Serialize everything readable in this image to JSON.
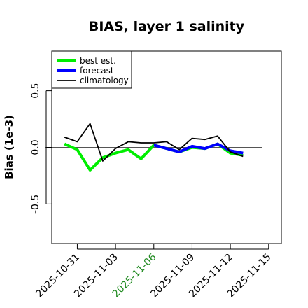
{
  "chart_data": {
    "type": "line",
    "title": "BIAS, layer 1 salinity",
    "xlabel": "",
    "ylabel": "Bias (1e-3)",
    "xlim": [
      "2025-10-29",
      "2025-11-16"
    ],
    "ylim": [
      -0.85,
      0.85
    ],
    "x_ticks": [
      {
        "date": "2025-10-31",
        "label": "2025-10-31",
        "color": "#000000"
      },
      {
        "date": "2025-11-03",
        "label": "2025-11-03",
        "color": "#000000"
      },
      {
        "date": "2025-11-06",
        "label": "2025-11-06",
        "color": "#228B22"
      },
      {
        "date": "2025-11-09",
        "label": "2025-11-09",
        "color": "#000000"
      },
      {
        "date": "2025-11-12",
        "label": "2025-11-12",
        "color": "#000000"
      },
      {
        "date": "2025-11-15",
        "label": "2025-11-15",
        "color": "#000000"
      }
    ],
    "y_ticks": [
      {
        "value": -0.5,
        "label": "-0.5"
      },
      {
        "value": 0.0,
        "label": "0.0"
      },
      {
        "value": 0.5,
        "label": "0.5"
      }
    ],
    "reference_line": 0.0,
    "grid": false,
    "legend_position": "top-left",
    "series": [
      {
        "name": "best est.",
        "color": "#00ee00",
        "x": [
          "2025-10-30",
          "2025-10-31",
          "2025-11-01",
          "2025-11-02",
          "2025-11-03",
          "2025-11-04",
          "2025-11-05",
          "2025-11-06",
          "2025-11-07",
          "2025-11-08",
          "2025-11-09",
          "2025-11-10",
          "2025-11-11",
          "2025-11-12",
          "2025-11-13"
        ],
        "y": [
          0.03,
          -0.02,
          -0.2,
          -0.09,
          -0.05,
          -0.02,
          -0.1,
          0.02,
          -0.01,
          -0.04,
          0.0,
          -0.01,
          0.03,
          -0.05,
          -0.07
        ]
      },
      {
        "name": "forecast",
        "color": "#0000ff",
        "x": [
          "2025-11-06",
          "2025-11-07",
          "2025-11-08",
          "2025-11-09",
          "2025-11-10",
          "2025-11-11",
          "2025-11-12",
          "2025-11-13"
        ],
        "y": [
          0.02,
          -0.01,
          -0.04,
          0.01,
          -0.01,
          0.03,
          -0.03,
          -0.05
        ]
      },
      {
        "name": "climatology",
        "color": "#000000",
        "x": [
          "2025-10-30",
          "2025-10-31",
          "2025-11-01",
          "2025-11-02",
          "2025-11-03",
          "2025-11-04",
          "2025-11-05",
          "2025-11-06",
          "2025-11-07",
          "2025-11-08",
          "2025-11-09",
          "2025-11-10",
          "2025-11-11",
          "2025-11-12",
          "2025-11-13"
        ],
        "y": [
          0.09,
          0.05,
          0.21,
          -0.12,
          -0.01,
          0.05,
          0.04,
          0.04,
          0.05,
          -0.02,
          0.08,
          0.07,
          0.1,
          -0.04,
          -0.08
        ]
      }
    ]
  }
}
